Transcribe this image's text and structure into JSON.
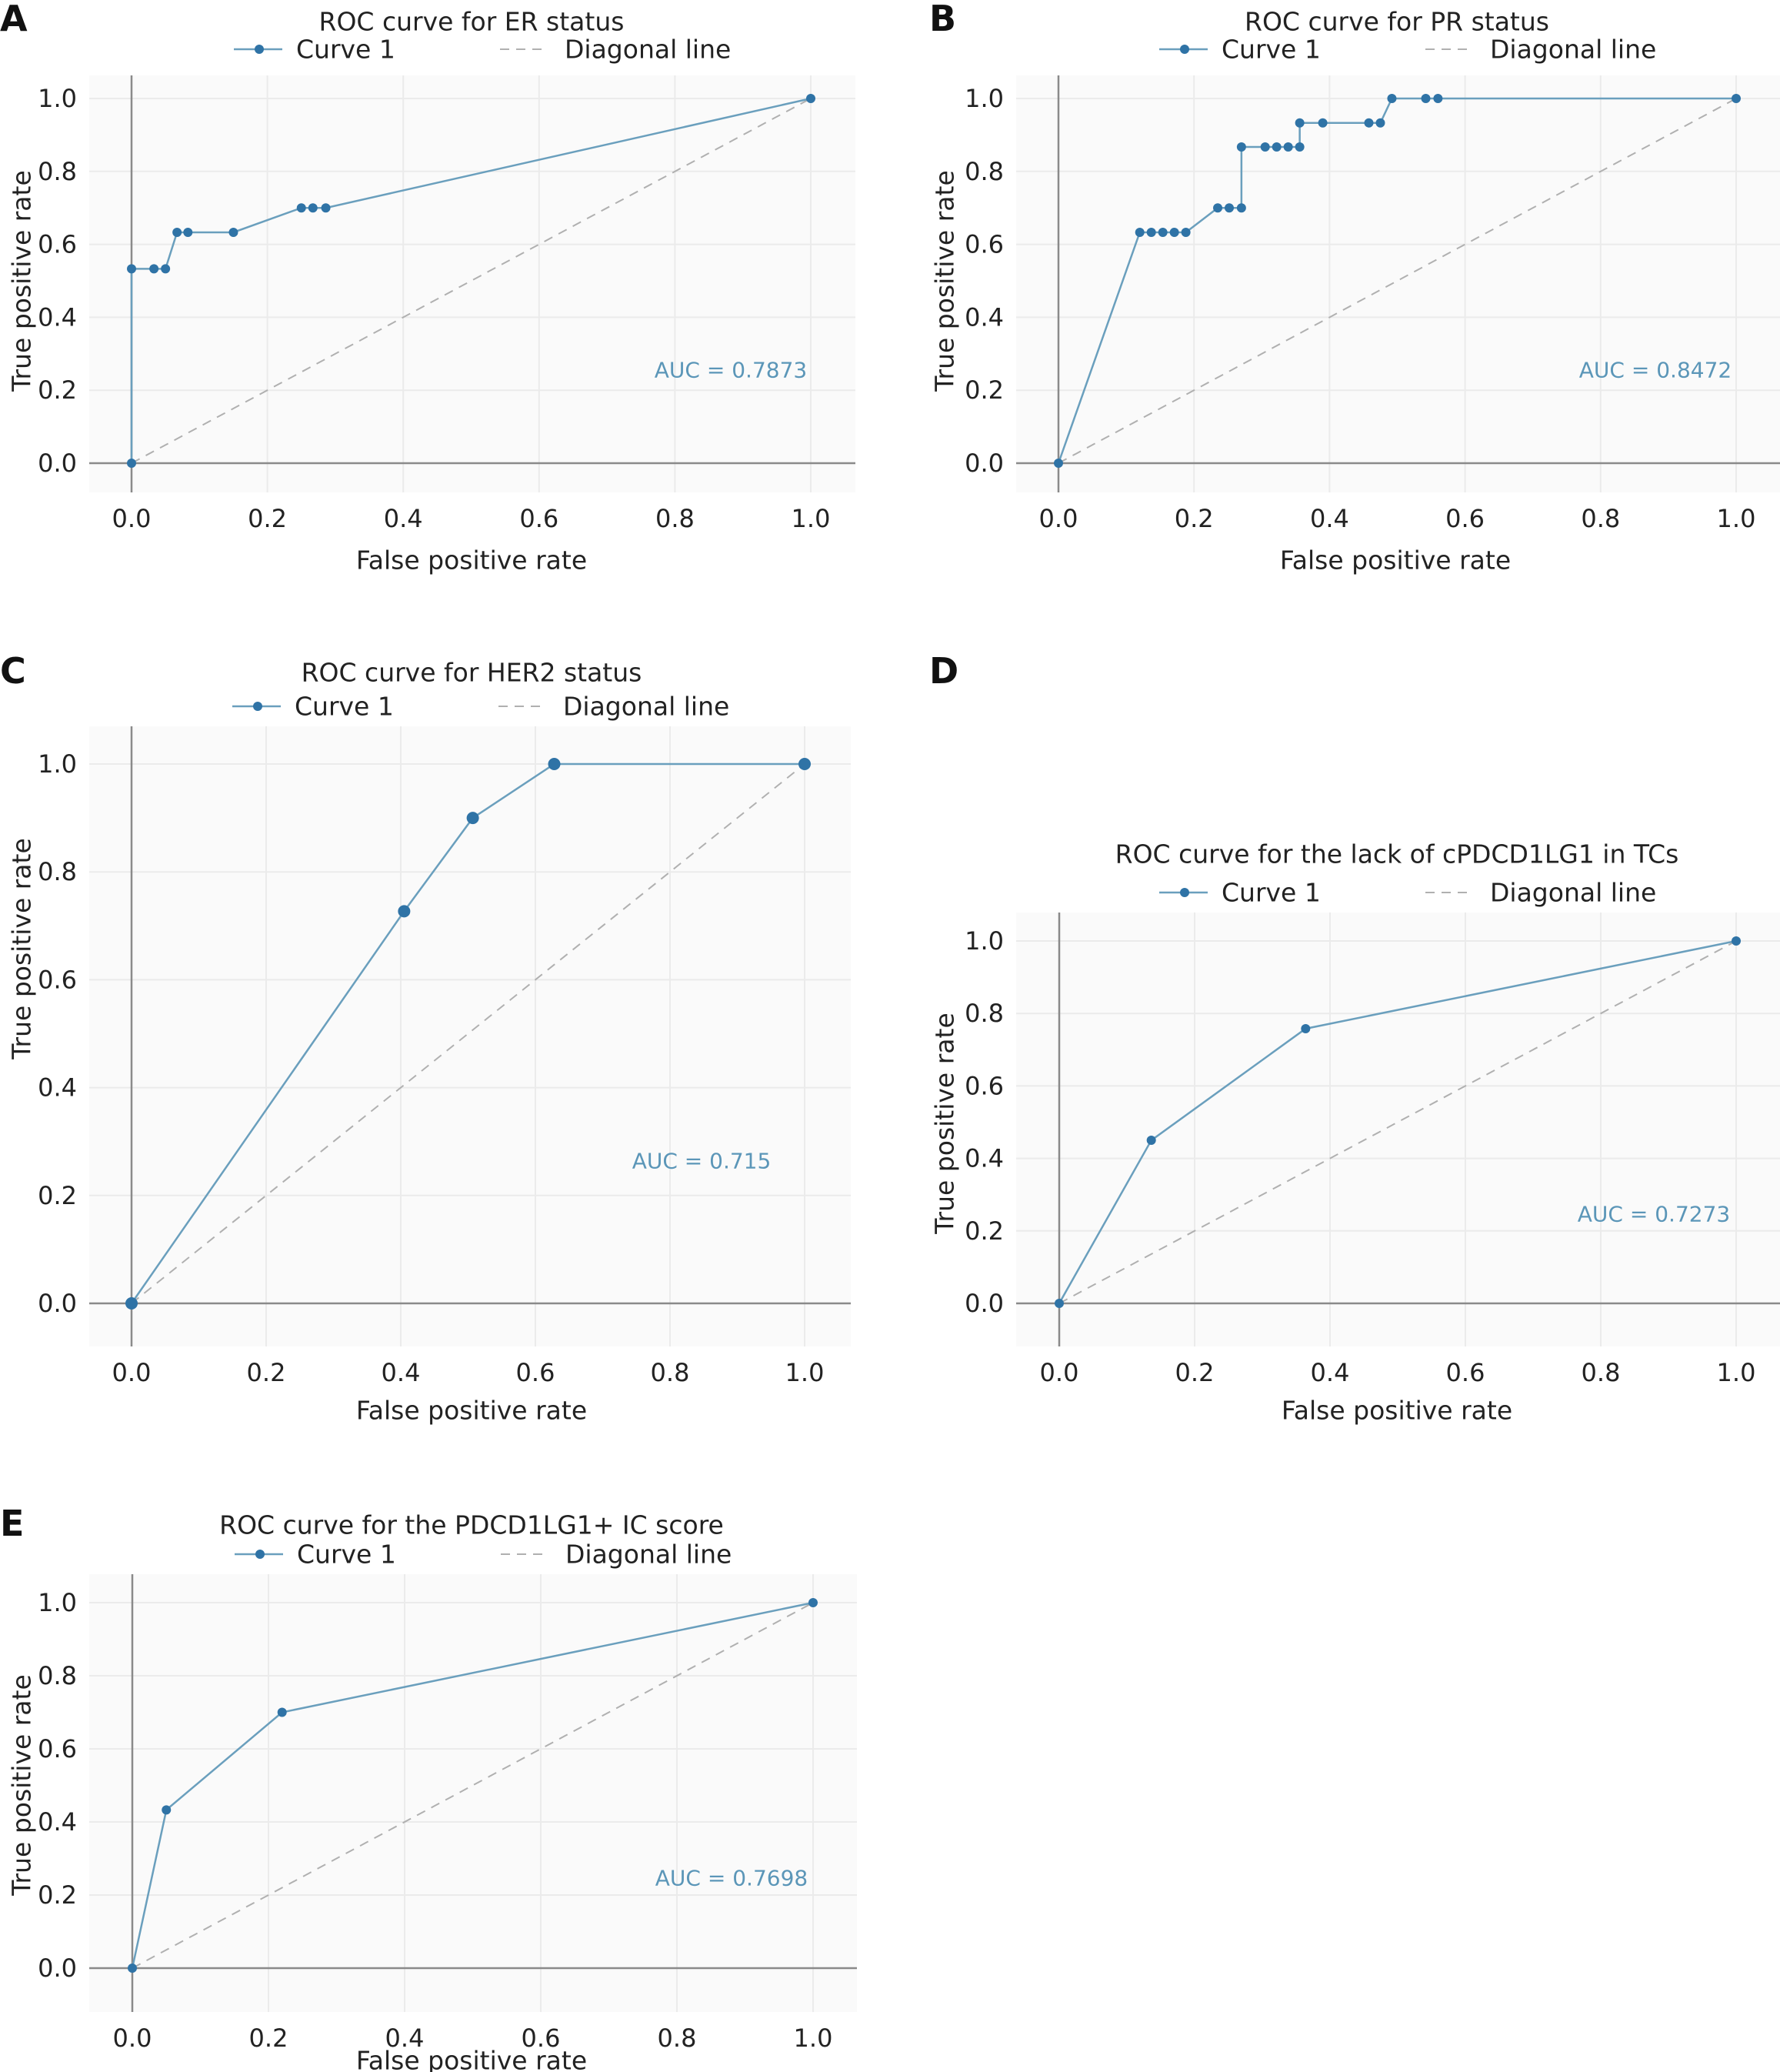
{
  "chart_data": [
    {
      "panel": "A",
      "type": "line",
      "title": "ROC curve for ER status",
      "xlabel": "False positive rate",
      "ylabel": "True positive rate",
      "xlim": [
        0,
        1
      ],
      "ylim": [
        0,
        1
      ],
      "xticks": [
        "0.0",
        "0.2",
        "0.4",
        "0.6",
        "0.8",
        "1.0"
      ],
      "yticks": [
        "0.0",
        "0.2",
        "0.4",
        "0.6",
        "0.8",
        "1.0"
      ],
      "legend": [
        "Curve 1",
        "Diagonal line"
      ],
      "auc_label": "AUC = 0.7873",
      "series": [
        {
          "name": "Curve 1",
          "x": [
            0,
            0,
            0.033,
            0.05,
            0.067,
            0.083,
            0.15,
            0.25,
            0.267,
            0.286,
            1.0
          ],
          "y": [
            0,
            0.533,
            0.533,
            0.533,
            0.633,
            0.633,
            0.633,
            0.7,
            0.7,
            0.7,
            1.0
          ]
        },
        {
          "name": "Diagonal line",
          "x": [
            0,
            1
          ],
          "y": [
            0,
            1
          ]
        }
      ]
    },
    {
      "panel": "B",
      "type": "line",
      "title": "ROC curve for PR status",
      "xlabel": "False positive rate",
      "ylabel": "True positive rate",
      "xlim": [
        0,
        1
      ],
      "ylim": [
        0,
        1
      ],
      "xticks": [
        "0.0",
        "0.2",
        "0.4",
        "0.6",
        "0.8",
        "1.0"
      ],
      "yticks": [
        "0.0",
        "0.2",
        "0.4",
        "0.6",
        "0.8",
        "1.0"
      ],
      "legend": [
        "Curve 1",
        "Diagonal line"
      ],
      "auc_label": "AUC = 0.8472",
      "series": [
        {
          "name": "Curve 1",
          "x": [
            0,
            0.12,
            0.137,
            0.154,
            0.171,
            0.188,
            0.235,
            0.252,
            0.27,
            0.27,
            0.305,
            0.322,
            0.339,
            0.356,
            0.356,
            0.39,
            0.458,
            0.475,
            0.492,
            0.542,
            0.56,
            1.0
          ],
          "y": [
            0,
            0.633,
            0.633,
            0.633,
            0.633,
            0.633,
            0.7,
            0.7,
            0.7,
            0.867,
            0.867,
            0.867,
            0.867,
            0.867,
            0.933,
            0.933,
            0.933,
            0.933,
            1.0,
            1.0,
            1.0,
            1.0
          ]
        },
        {
          "name": "Diagonal line",
          "x": [
            0,
            1
          ],
          "y": [
            0,
            1
          ]
        }
      ]
    },
    {
      "panel": "C",
      "type": "line",
      "title": "ROC curve for HER2 status",
      "xlabel": "False positive rate",
      "ylabel": "True positive rate",
      "xlim": [
        0,
        1
      ],
      "ylim": [
        0,
        1
      ],
      "xticks": [
        "0.0",
        "0.2",
        "0.4",
        "0.6",
        "0.8",
        "1.0"
      ],
      "yticks": [
        "0.0",
        "0.2",
        "0.4",
        "0.6",
        "0.8",
        "1.0"
      ],
      "legend": [
        "Curve 1",
        "Diagonal line"
      ],
      "auc_label": "AUC = 0.715",
      "series": [
        {
          "name": "Curve 1",
          "x": [
            0,
            0.405,
            0.507,
            0.628,
            1.0
          ],
          "y": [
            0,
            0.727,
            0.9,
            1.0,
            1.0
          ]
        },
        {
          "name": "Diagonal line",
          "x": [
            0,
            1
          ],
          "y": [
            0,
            1
          ]
        }
      ]
    },
    {
      "panel": "D",
      "type": "line",
      "title": "ROC curve for the lack of cPDCD1LG1 in TCs",
      "xlabel": "False positive rate",
      "ylabel": "True positive rate",
      "xlim": [
        0,
        1
      ],
      "ylim": [
        0,
        1
      ],
      "xticks": [
        "0.0",
        "0.2",
        "0.4",
        "0.6",
        "0.8",
        "1.0"
      ],
      "yticks": [
        "0.0",
        "0.2",
        "0.4",
        "0.6",
        "0.8",
        "1.0"
      ],
      "legend": [
        "Curve 1",
        "Diagonal line"
      ],
      "auc_label": "AUC = 0.7273",
      "series": [
        {
          "name": "Curve 1",
          "x": [
            0,
            0.136,
            0.364,
            1.0
          ],
          "y": [
            0,
            0.45,
            0.758,
            1.0
          ]
        },
        {
          "name": "Diagonal line",
          "x": [
            0,
            1
          ],
          "y": [
            0,
            1
          ]
        }
      ]
    },
    {
      "panel": "E",
      "type": "line",
      "title": "ROC curve for the PDCD1LG1+ IC score",
      "xlabel": "False positive rate",
      "ylabel": "True positive rate",
      "xlim": [
        0,
        1
      ],
      "ylim": [
        0,
        1
      ],
      "xticks": [
        "0.0",
        "0.2",
        "0.4",
        "0.6",
        "0.8",
        "1.0"
      ],
      "yticks": [
        "0.0",
        "0.2",
        "0.4",
        "0.6",
        "0.8",
        "1.0"
      ],
      "legend": [
        "Curve 1",
        "Diagonal line"
      ],
      "auc_label": "AUC = 0.7698",
      "series": [
        {
          "name": "Curve 1",
          "x": [
            0,
            0.05,
            0.22,
            1.0
          ],
          "y": [
            0,
            0.433,
            0.7,
            1.0
          ]
        },
        {
          "name": "Diagonal line",
          "x": [
            0,
            1
          ],
          "y": [
            0,
            1
          ]
        }
      ]
    }
  ]
}
